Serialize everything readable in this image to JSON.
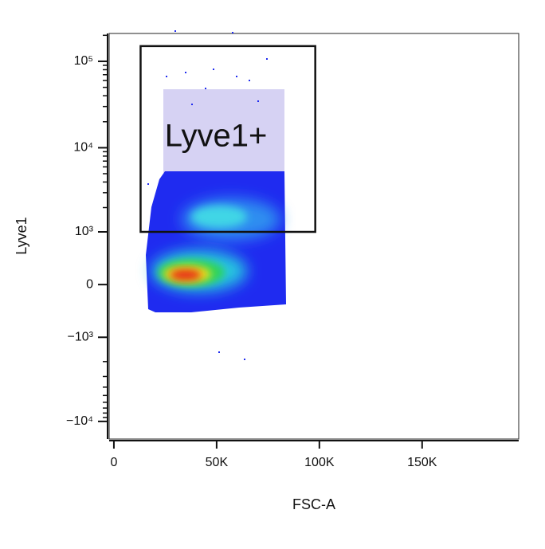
{
  "chart_data": {
    "type": "density",
    "xlabel": "FSC-A",
    "ylabel": "Lyve1",
    "xlim": [
      -2300,
      197000
    ],
    "xticks": [
      0,
      {
        "value": 50000,
        "label": "50K"
      },
      {
        "value": 100000,
        "label": "100K"
      },
      {
        "value": 150000,
        "label": "150K"
      }
    ],
    "ylim": [
      -16000,
      210000
    ],
    "yscale": "biexponential",
    "yticks": [
      {
        "value": 100000,
        "label": "10⁵"
      },
      {
        "value": 10000,
        "label": "10⁴"
      },
      {
        "value": 1000,
        "label": "10³"
      },
      0,
      {
        "value": -1000,
        "label": "−10³"
      },
      {
        "value": -10000,
        "label": "−10⁴"
      }
    ],
    "gates": [
      {
        "name": "Lyve1+",
        "x": [
          13000,
          98000
        ],
        "y": [
          1000,
          150000
        ]
      }
    ]
  }
}
